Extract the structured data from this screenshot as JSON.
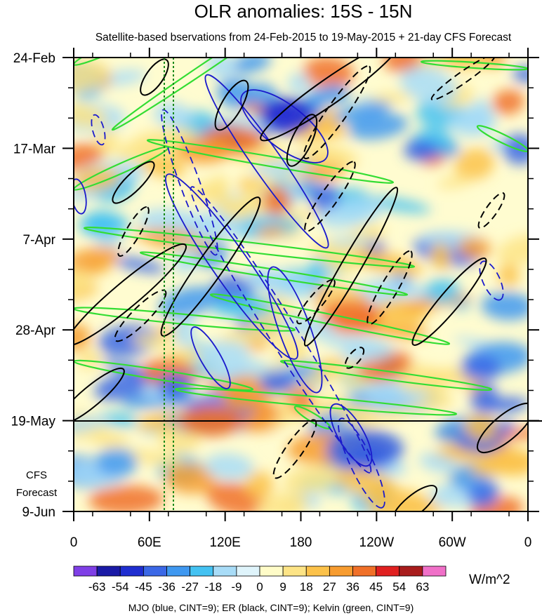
{
  "chart_data": {
    "type": "heatmap",
    "title": "OLR anomalies: 15S - 15N",
    "subtitle": "Satellite-based bservations from 24-Feb-2015 to 19-May-2015 + 21-day CFS Forecast",
    "xlabel": "",
    "ylabel": "",
    "x_ticks": [
      "0",
      "60E",
      "120E",
      "180",
      "120W",
      "60W",
      "0"
    ],
    "y_ticks": [
      "24-Feb",
      "17-Mar",
      "7-Apr",
      "28-Apr",
      "19-May",
      "9-Jun"
    ],
    "forecast_label": [
      "CFS",
      "Forecast"
    ],
    "forecast_start": "19-May",
    "colorbar": {
      "units": "W/m^2",
      "levels": [
        "-63",
        "-54",
        "-45",
        "-36",
        "-27",
        "-18",
        "-9",
        "0",
        "9",
        "18",
        "27",
        "36",
        "45",
        "54",
        "63"
      ],
      "colors": [
        "#7f3fe6",
        "#1a1aa6",
        "#1f2ed0",
        "#3b68e6",
        "#3f98f0",
        "#44c2f2",
        "#a8dcf7",
        "#dff4fb",
        "#fffcc8",
        "#fde486",
        "#fcc24a",
        "#f79c30",
        "#f07028",
        "#e02020",
        "#a81c1c",
        "#f070c8"
      ]
    },
    "footnote": "MJO (blue, CINT=9); ER (black, CINT=9); Kelvin (green, CINT=9)",
    "series_colors": {
      "MJO": "#1a1acc",
      "ER": "#000000",
      "Kelvin": "#33dd33"
    }
  }
}
